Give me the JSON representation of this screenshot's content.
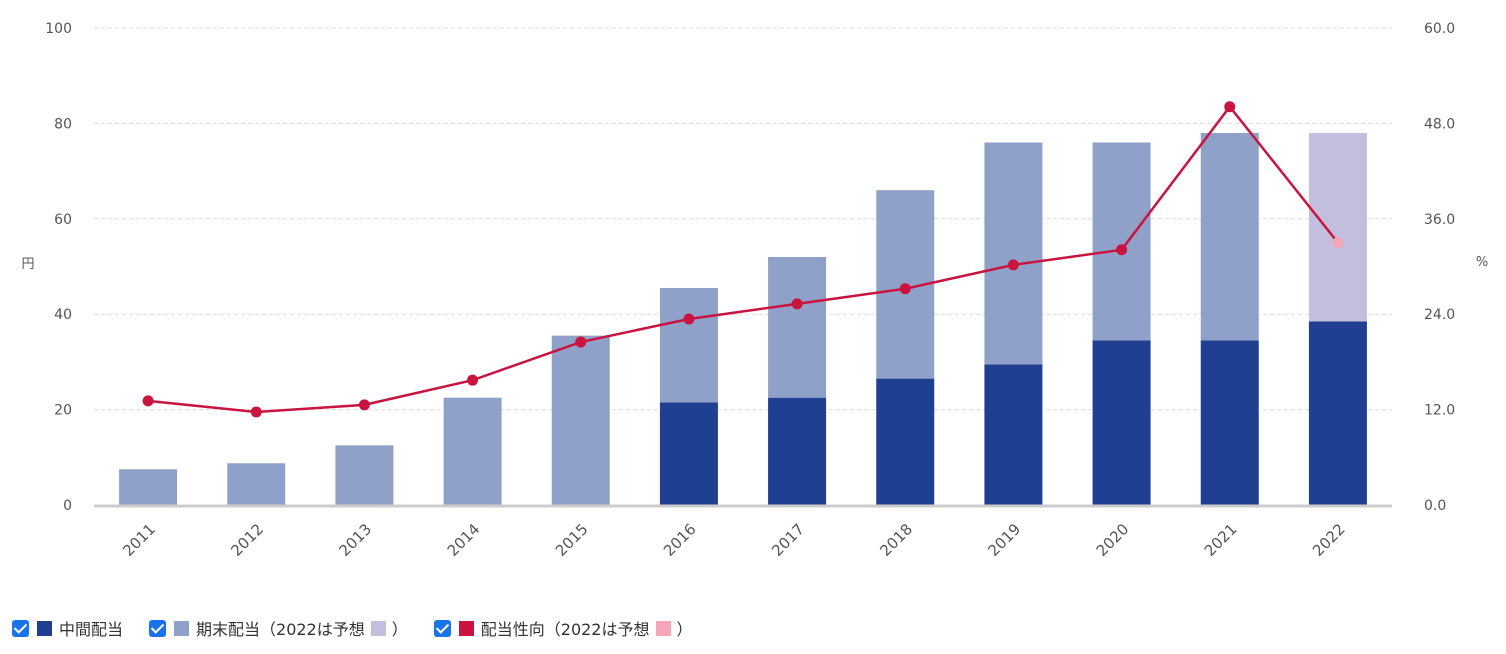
{
  "chart_data": {
    "type": "bar",
    "stacked": true,
    "categories": [
      "2011",
      "2012",
      "2013",
      "2014",
      "2015",
      "2016",
      "2017",
      "2018",
      "2019",
      "2020",
      "2021",
      "2022"
    ],
    "series": [
      {
        "name": "中間配当",
        "type": "bar",
        "axis": "left",
        "color": "#1f3f91",
        "values": [
          0,
          0,
          0,
          0,
          0,
          21.5,
          22.5,
          26.5,
          29.5,
          34.5,
          34.5,
          38.5
        ]
      },
      {
        "name": "期末配当",
        "type": "bar",
        "axis": "left",
        "color": "#8fa1c8",
        "forecast_color": "#c3bedd",
        "values": [
          7.5,
          8.75,
          12.5,
          22.5,
          35.5,
          24,
          29.5,
          39.5,
          46.5,
          41.5,
          43.5,
          39.5
        ]
      },
      {
        "name": "配当性向",
        "type": "line",
        "axis": "right",
        "color": "#c8143f",
        "forecast_color": "#f6a6b8",
        "values": [
          13.1,
          11.7,
          12.6,
          15.7,
          20.5,
          23.4,
          25.3,
          27.2,
          30.2,
          32.1,
          50.1,
          33.0
        ]
      }
    ],
    "forecast_index": 11,
    "y_left": {
      "label": "円",
      "min": 0,
      "max": 100,
      "ticks": [
        "0",
        "20",
        "40",
        "60",
        "80",
        "100"
      ]
    },
    "y_right": {
      "label": "%",
      "min": 0,
      "max": 60,
      "ticks": [
        "0.0",
        "12.0",
        "24.0",
        "36.0",
        "48.0",
        "60.0"
      ]
    },
    "grid": true
  },
  "legend": {
    "item1": {
      "label": "中間配当",
      "color": "#1f3f91"
    },
    "item2": {
      "label": "期末配当（2022は予想",
      "color": "#8fa1c8",
      "forecast_color": "#c3bedd",
      "close": "）"
    },
    "item3": {
      "label": "配当性向（2022は予想",
      "color": "#c8143f",
      "forecast_color": "#f6a6b8",
      "close": "）"
    }
  }
}
